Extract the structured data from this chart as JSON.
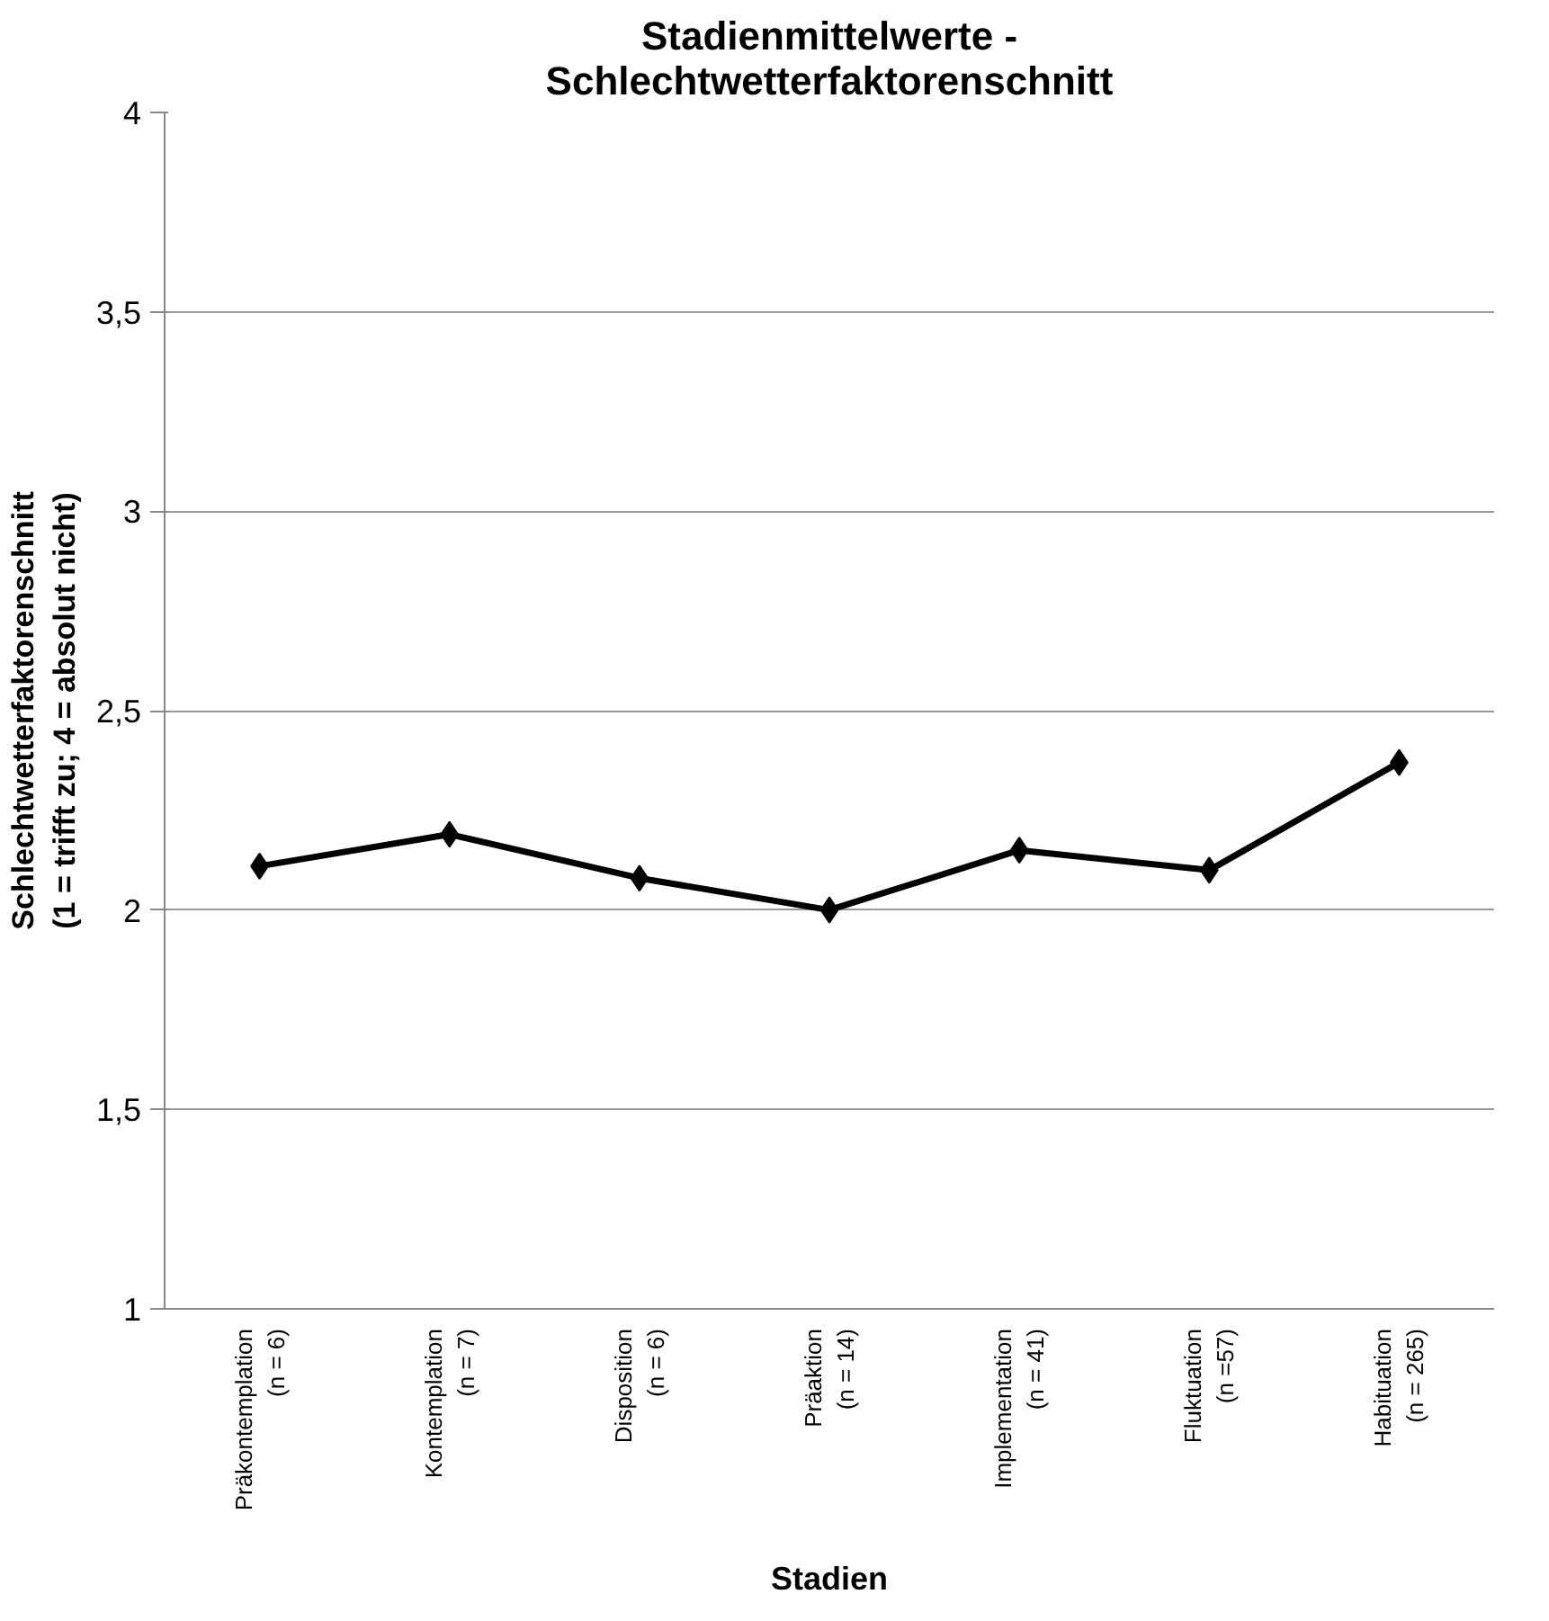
{
  "chart_data": {
    "type": "line",
    "title": "Stadienmittelwerte -\nSchlechtwetterfaktorenschnitt",
    "xlabel": "Stadien",
    "ylabel": "Schlechtwetterfaktorenschnitt\n(1 = trifft zu; 4 = absolut nicht)",
    "categories": [
      "Präkontemplation\n(n = 6)",
      "Kontemplation\n(n = 7)",
      "Disposition\n(n = 6)",
      "Präaktion\n(n = 14)",
      "Implementation\n(n = 41)",
      "Fluktuation\n(n =57)",
      "Habituation\n(n = 265)"
    ],
    "series": [
      {
        "color": "#000000",
        "values": [
          2.11,
          2.19,
          2.08,
          2.0,
          2.15,
          2.1,
          2.37
        ]
      }
    ],
    "ylim": [
      1,
      4
    ],
    "yticks": [
      1,
      {
        "value": 1.5,
        "label": "1,5"
      },
      2,
      {
        "value": 2.5,
        "label": "2,5"
      },
      3,
      {
        "value": 3.5,
        "label": "3,5"
      },
      4
    ],
    "grid": "y",
    "marker": "diamond",
    "line_style": "solid"
  }
}
